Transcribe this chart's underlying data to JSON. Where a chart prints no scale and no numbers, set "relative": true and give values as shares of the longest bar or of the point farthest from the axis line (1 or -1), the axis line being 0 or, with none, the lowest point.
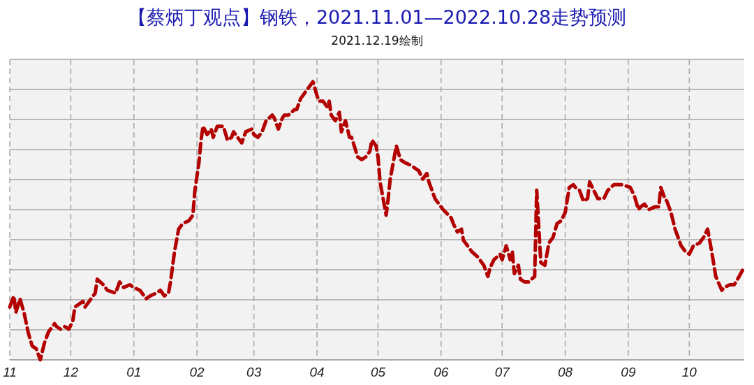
{
  "chart_data": {
    "type": "line",
    "title": "【蔡炳丁观点】钢铁，2021.11.01—2022.10.28走势预测",
    "subtitle": "2021.12.19绘制",
    "relative": true,
    "grid": true,
    "line_style": "dashed",
    "marker": "none",
    "xlim": [
      "2021-11-01",
      "2022-10-28"
    ],
    "xticks": [
      {
        "value": "2021-11-01",
        "label": "11"
      },
      {
        "value": "2021-12-01",
        "label": "12"
      },
      {
        "value": "2022-01-01",
        "label": "01"
      },
      {
        "value": "2022-02-01",
        "label": "02"
      },
      {
        "value": "2022-03-01",
        "label": "03"
      },
      {
        "value": "2022-04-01",
        "label": "04"
      },
      {
        "value": "2022-05-01",
        "label": "05"
      },
      {
        "value": "2022-06-01",
        "label": "06"
      },
      {
        "value": "2022-07-01",
        "label": "07"
      },
      {
        "value": "2022-08-01",
        "label": "08"
      },
      {
        "value": "2022-09-01",
        "label": "09"
      },
      {
        "value": "2022-10-01",
        "label": "10"
      }
    ],
    "x": [
      "2021-11-01",
      "2021-11-03",
      "2021-11-04",
      "2021-11-06",
      "2021-11-08",
      "2021-11-10",
      "2021-11-12",
      "2021-11-14",
      "2021-11-16",
      "2021-11-18",
      "2021-11-20",
      "2021-11-23",
      "2021-11-24",
      "2021-11-26",
      "2021-11-28",
      "2021-11-30",
      "2021-12-02",
      "2021-12-03",
      "2021-12-05",
      "2021-12-07",
      "2021-12-08",
      "2021-12-10",
      "2021-12-13",
      "2021-12-14",
      "2021-12-17",
      "2021-12-19",
      "2021-12-23",
      "2021-12-25",
      "2021-12-27",
      "2021-12-30",
      "2022-01-01",
      "2022-01-04",
      "2022-01-07",
      "2022-01-09",
      "2022-01-12",
      "2022-01-14",
      "2022-01-16",
      "2022-01-18",
      "2022-01-19",
      "2022-01-21",
      "2022-01-23",
      "2022-01-25",
      "2022-01-28",
      "2022-01-30",
      "2022-01-31",
      "2022-02-02",
      "2022-02-03",
      "2022-02-04",
      "2022-02-06",
      "2022-02-08",
      "2022-02-09",
      "2022-02-11",
      "2022-02-13",
      "2022-02-14",
      "2022-02-16",
      "2022-02-18",
      "2022-02-19",
      "2022-02-22",
      "2022-02-23",
      "2022-02-25",
      "2022-02-28",
      "2022-03-01",
      "2022-03-03",
      "2022-03-05",
      "2022-03-07",
      "2022-03-10",
      "2022-03-11",
      "2022-03-13",
      "2022-03-15",
      "2022-03-16",
      "2022-03-18",
      "2022-03-21",
      "2022-03-22",
      "2022-03-24",
      "2022-03-28",
      "2022-03-30",
      "2022-04-01",
      "2022-04-02",
      "2022-04-04",
      "2022-04-06",
      "2022-04-07",
      "2022-04-08",
      "2022-04-10",
      "2022-04-12",
      "2022-04-13",
      "2022-04-15",
      "2022-04-17",
      "2022-04-18",
      "2022-04-21",
      "2022-04-23",
      "2022-04-25",
      "2022-04-27",
      "2022-04-28",
      "2022-04-30",
      "2022-05-01",
      "2022-05-02",
      "2022-05-04",
      "2022-05-05",
      "2022-05-06",
      "2022-05-07",
      "2022-05-09",
      "2022-05-10",
      "2022-05-12",
      "2022-05-14",
      "2022-05-17",
      "2022-05-21",
      "2022-05-23",
      "2022-05-25",
      "2022-05-26",
      "2022-05-29",
      "2022-05-31",
      "2022-06-02",
      "2022-06-06",
      "2022-06-07",
      "2022-06-09",
      "2022-06-11",
      "2022-06-12",
      "2022-06-14",
      "2022-06-16",
      "2022-06-19",
      "2022-06-21",
      "2022-06-22",
      "2022-06-24",
      "2022-06-25",
      "2022-06-27",
      "2022-06-30",
      "2022-07-01",
      "2022-07-03",
      "2022-07-05",
      "2022-07-06",
      "2022-07-07",
      "2022-07-09",
      "2022-07-10",
      "2022-07-12",
      "2022-07-14",
      "2022-07-17",
      "2022-07-18",
      "2022-07-20",
      "2022-07-22",
      "2022-07-24",
      "2022-07-26",
      "2022-07-28",
      "2022-07-30",
      "2022-08-01",
      "2022-08-03",
      "2022-08-05",
      "2022-08-06",
      "2022-08-08",
      "2022-08-10",
      "2022-08-12",
      "2022-08-13",
      "2022-08-15",
      "2022-08-17",
      "2022-08-20",
      "2022-08-22",
      "2022-08-25",
      "2022-08-29",
      "2022-09-02",
      "2022-09-04",
      "2022-09-06",
      "2022-09-07",
      "2022-09-09",
      "2022-09-11",
      "2022-09-14",
      "2022-09-16",
      "2022-09-17",
      "2022-09-19",
      "2022-09-20",
      "2022-09-22",
      "2022-09-24",
      "2022-09-25",
      "2022-09-27",
      "2022-09-29",
      "2022-10-01",
      "2022-10-03",
      "2022-10-06",
      "2022-10-08",
      "2022-10-10",
      "2022-10-12",
      "2022-10-14",
      "2022-10-17",
      "2022-10-18",
      "2022-10-21",
      "2022-10-23",
      "2022-10-24",
      "2022-10-27",
      "2022-10-28"
    ],
    "series": [
      {
        "color": "#b30000",
        "values": [
          0.19,
          0.23,
          0.17,
          0.22,
          0.17,
          0.1,
          0.05,
          0.04,
          0,
          0.06,
          0.1,
          0.13,
          0.12,
          0.11,
          0.12,
          0.11,
          0.14,
          0.19,
          0.2,
          0.21,
          0.19,
          0.21,
          0.24,
          0.29,
          0.27,
          0.25,
          0.24,
          0.28,
          0.26,
          0.27,
          0.26,
          0.25,
          0.22,
          0.23,
          0.24,
          0.25,
          0.23,
          0.24,
          0.28,
          0.39,
          0.47,
          0.49,
          0.5,
          0.52,
          0.61,
          0.71,
          0.79,
          0.84,
          0.81,
          0.83,
          0.8,
          0.84,
          0.84,
          0.84,
          0.79,
          0.8,
          0.82,
          0.79,
          0.78,
          0.82,
          0.83,
          0.81,
          0.8,
          0.82,
          0.86,
          0.88,
          0.87,
          0.83,
          0.87,
          0.88,
          0.88,
          0.9,
          0.9,
          0.94,
          0.98,
          1,
          0.95,
          0.93,
          0.93,
          0.91,
          0.93,
          0.88,
          0.86,
          0.89,
          0.82,
          0.86,
          0.8,
          0.8,
          0.73,
          0.72,
          0.73,
          0.75,
          0.79,
          0.77,
          0.73,
          0.64,
          0.56,
          0.52,
          0.58,
          0.65,
          0.73,
          0.77,
          0.72,
          0.71,
          0.7,
          0.68,
          0.65,
          0.67,
          0.64,
          0.58,
          0.56,
          0.54,
          0.51,
          0.49,
          0.46,
          0.47,
          0.43,
          0.41,
          0.39,
          0.37,
          0.35,
          0.34,
          0.3,
          0.33,
          0.36,
          0.38,
          0.36,
          0.41,
          0.36,
          0.39,
          0.31,
          0.34,
          0.29,
          0.28,
          0.28,
          0.3,
          0.61,
          0.35,
          0.34,
          0.42,
          0.44,
          0.49,
          0.5,
          0.53,
          0.62,
          0.63,
          0.62,
          0.61,
          0.57,
          0.58,
          0.64,
          0.61,
          0.58,
          0.58,
          0.61,
          0.63,
          0.63,
          0.62,
          0.59,
          0.54,
          0.55,
          0.56,
          0.54,
          0.55,
          0.55,
          0.62,
          0.58,
          0.57,
          0.53,
          0.47,
          0.45,
          0.41,
          0.39,
          0.38,
          0.41,
          0.42,
          0.44,
          0.47,
          0.39,
          0.3,
          0.25,
          0.26,
          0.27,
          0.27,
          0.28,
          0.32,
          0.33
        ]
      }
    ]
  }
}
